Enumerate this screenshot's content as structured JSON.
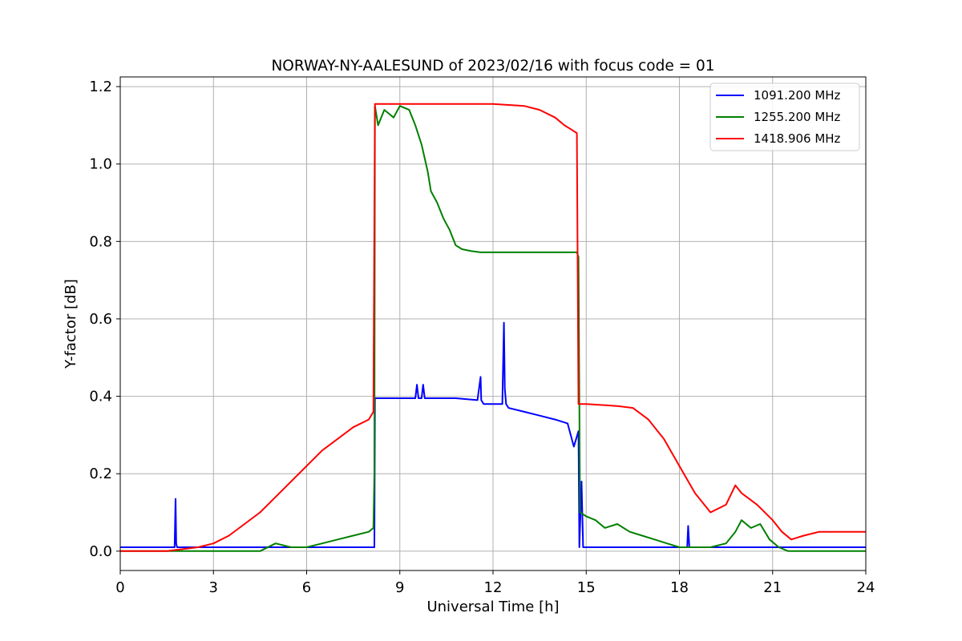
{
  "chart_data": {
    "type": "line",
    "title": "NORWAY-NY-AALESUND of 2023/02/16 with focus code = 01",
    "xlabel": "Universal Time [h]",
    "ylabel": "Y-factor [dB]",
    "xlim": [
      0,
      24
    ],
    "ylim": [
      -0.05,
      1.225
    ],
    "xticks": [
      0,
      3,
      6,
      9,
      12,
      15,
      18,
      21,
      24
    ],
    "xtick_labels": [
      "0",
      "3",
      "6",
      "9",
      "12",
      "15",
      "18",
      "21",
      "24"
    ],
    "yticks": [
      0.0,
      0.2,
      0.4,
      0.6,
      0.8,
      1.0,
      1.2
    ],
    "ytick_labels": [
      "0.0",
      "0.2",
      "0.4",
      "0.6",
      "0.8",
      "1.0",
      "1.2"
    ],
    "grid": true,
    "legend_position": "top-right",
    "series": [
      {
        "name": "1091.200 MHz",
        "color": "#0000ff",
        "x": [
          0,
          1.75,
          1.78,
          1.8,
          1.83,
          1.9,
          8.18,
          8.2,
          9.5,
          9.55,
          9.6,
          9.7,
          9.75,
          9.8,
          10.8,
          11.5,
          11.6,
          11.62,
          11.7,
          12.3,
          12.35,
          12.38,
          12.42,
          12.5,
          13.0,
          13.5,
          14.0,
          14.4,
          14.6,
          14.75,
          14.78,
          14.85,
          14.9,
          15.0,
          18.25,
          18.28,
          18.32,
          20.0,
          21.0,
          24
        ],
        "y": [
          0.01,
          0.01,
          0.135,
          0.02,
          0.01,
          0.01,
          0.01,
          0.395,
          0.395,
          0.43,
          0.395,
          0.395,
          0.43,
          0.395,
          0.395,
          0.39,
          0.45,
          0.39,
          0.38,
          0.38,
          0.59,
          0.42,
          0.38,
          0.37,
          0.36,
          0.35,
          0.34,
          0.33,
          0.27,
          0.31,
          0.01,
          0.18,
          0.01,
          0.01,
          0.01,
          0.065,
          0.01,
          0.01,
          0.01,
          0.01
        ]
      },
      {
        "name": "1255.200 MHz",
        "color": "#008000",
        "x": [
          0,
          4.5,
          5.0,
          5.5,
          6.0,
          6.5,
          7.0,
          7.5,
          8.0,
          8.15,
          8.18,
          8.2,
          8.3,
          8.5,
          8.8,
          9.0,
          9.3,
          9.5,
          9.7,
          9.9,
          10.0,
          10.2,
          10.4,
          10.6,
          10.8,
          11.0,
          11.3,
          11.6,
          12.0,
          14.7,
          14.75,
          14.8,
          15.0,
          15.3,
          15.6,
          16.0,
          16.4,
          16.8,
          17.2,
          17.6,
          18.0,
          18.5,
          19.0,
          19.5,
          19.8,
          20.0,
          20.3,
          20.6,
          20.9,
          21.2,
          21.5,
          24
        ],
        "y": [
          0.0,
          0.0,
          0.02,
          0.01,
          0.01,
          0.02,
          0.03,
          0.04,
          0.05,
          0.06,
          0.2,
          1.15,
          1.1,
          1.14,
          1.12,
          1.15,
          1.14,
          1.1,
          1.05,
          0.98,
          0.93,
          0.9,
          0.86,
          0.83,
          0.79,
          0.78,
          0.775,
          0.772,
          0.772,
          0.772,
          0.76,
          0.1,
          0.09,
          0.08,
          0.06,
          0.07,
          0.05,
          0.04,
          0.03,
          0.02,
          0.01,
          0.01,
          0.01,
          0.02,
          0.05,
          0.08,
          0.06,
          0.07,
          0.03,
          0.01,
          0.0,
          0.0
        ]
      },
      {
        "name": "1418.906 MHz",
        "color": "#ff0000",
        "x": [
          0,
          1.5,
          2.0,
          2.5,
          3.0,
          3.5,
          4.0,
          4.5,
          5.0,
          5.5,
          6.0,
          6.5,
          7.0,
          7.5,
          8.0,
          8.15,
          8.2,
          12.0,
          13.0,
          13.5,
          14.0,
          14.3,
          14.5,
          14.7,
          14.75,
          14.8,
          15.0,
          16.0,
          16.5,
          17.0,
          17.5,
          18.0,
          18.5,
          19.0,
          19.5,
          19.8,
          20.0,
          20.5,
          21.0,
          21.3,
          21.6,
          22.0,
          22.5,
          23.0,
          23.5,
          24
        ],
        "y": [
          0.0,
          0.0,
          0.005,
          0.01,
          0.02,
          0.04,
          0.07,
          0.1,
          0.14,
          0.18,
          0.22,
          0.26,
          0.29,
          0.32,
          0.34,
          0.36,
          1.155,
          1.155,
          1.15,
          1.14,
          1.12,
          1.1,
          1.09,
          1.08,
          0.38,
          0.38,
          0.38,
          0.375,
          0.37,
          0.34,
          0.29,
          0.22,
          0.15,
          0.1,
          0.12,
          0.17,
          0.15,
          0.12,
          0.08,
          0.05,
          0.03,
          0.04,
          0.05,
          0.05,
          0.05,
          0.05
        ]
      }
    ]
  }
}
